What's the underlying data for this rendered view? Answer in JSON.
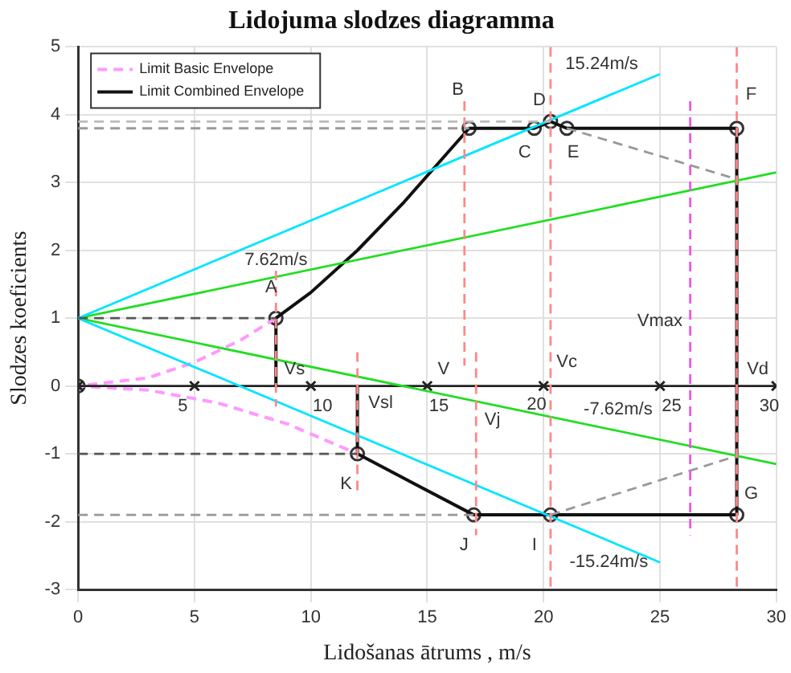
{
  "chart_data": {
    "type": "line",
    "title": "Lidojuma slodzes diagramma",
    "xlabel": "Lidošanas ātrums , m/s",
    "ylabel": "Slodzes koeficients",
    "xlim": [
      0,
      30
    ],
    "ylim": [
      -3,
      5
    ],
    "xticks": [
      0,
      5,
      10,
      15,
      20,
      25,
      30
    ],
    "yticks": [
      -3,
      -2,
      -1,
      0,
      1,
      2,
      3,
      4,
      5
    ],
    "grid": true,
    "legend": "top left",
    "series": [
      {
        "type": "line",
        "color": "#bbbbbb",
        "line_style": "dashed",
        "marker": "none",
        "x": [
          0,
          20.3
        ],
        "values": [
          3.9,
          3.9
        ]
      },
      {
        "type": "line",
        "color": "#999999",
        "line_style": "dashed",
        "marker": "none",
        "x": [
          0,
          16.8
        ],
        "values": [
          3.8,
          3.8
        ]
      },
      {
        "type": "line",
        "color": "#555555",
        "line_style": "dashed",
        "marker": "none",
        "x": [
          0,
          8.5
        ],
        "values": [
          1,
          1
        ]
      },
      {
        "type": "line",
        "color": "#555555",
        "line_style": "dashed",
        "marker": "none",
        "x": [
          0,
          12
        ],
        "values": [
          -1,
          -1
        ]
      },
      {
        "type": "line",
        "color": "#999999",
        "line_style": "dashed",
        "marker": "none",
        "x": [
          0,
          17
        ],
        "values": [
          -1.9,
          -1.9
        ]
      },
      {
        "type": "line",
        "color": "#ff8888",
        "line_style": "dashed",
        "marker": "none",
        "x": [
          8.5,
          8.5
        ],
        "values": [
          1.7,
          -0.3
        ]
      },
      {
        "type": "line",
        "color": "#ff8888",
        "line_style": "dashed",
        "marker": "none",
        "x": [
          12,
          12
        ],
        "values": [
          0.5,
          -1.6
        ]
      },
      {
        "type": "line",
        "color": "#ff8888",
        "line_style": "dashed",
        "marker": "none",
        "x": [
          16.6,
          16.6
        ],
        "values": [
          4.2,
          0.3
        ]
      },
      {
        "type": "line",
        "color": "#ff8888",
        "line_style": "dashed",
        "marker": "none",
        "x": [
          17.1,
          17.1
        ],
        "values": [
          0.5,
          -2.2
        ]
      },
      {
        "type": "line",
        "color": "#ff8888",
        "line_style": "dashed",
        "marker": "none",
        "x": [
          20.3,
          20.3
        ],
        "values": [
          5,
          -3
        ]
      },
      {
        "type": "line",
        "color": "#ff8888",
        "line_style": "dashed",
        "marker": "none",
        "x": [
          28.3,
          28.3
        ],
        "values": [
          5,
          -3
        ]
      },
      {
        "type": "line",
        "color": "#ee55ee",
        "line_style": "dashed",
        "marker": "none",
        "x": [
          26.3,
          26.3
        ],
        "values": [
          4.2,
          -2.2
        ]
      },
      {
        "type": "line",
        "color": "#00e5ff",
        "line_style": "solid",
        "marker": "none",
        "x": [
          0,
          25
        ],
        "values": [
          1,
          4.6
        ]
      },
      {
        "type": "line",
        "color": "#00e5ff",
        "line_style": "solid",
        "marker": "none",
        "x": [
          0,
          25
        ],
        "values": [
          1,
          -2.6
        ]
      },
      {
        "type": "line",
        "color": "#22dd22",
        "line_style": "solid",
        "marker": "none",
        "x": [
          0,
          30
        ],
        "values": [
          1,
          3.15
        ]
      },
      {
        "type": "line",
        "color": "#22dd22",
        "line_style": "solid",
        "marker": "none",
        "x": [
          0,
          30
        ],
        "values": [
          1,
          -1.15
        ]
      },
      {
        "type": "line",
        "color": "#999999",
        "line_style": "dashed",
        "marker": "none",
        "x": [
          21,
          28.3
        ],
        "values": [
          3.8,
          3.05
        ]
      },
      {
        "type": "line",
        "color": "#999999",
        "line_style": "dashed",
        "marker": "none",
        "x": [
          20.3,
          28.3
        ],
        "values": [
          -1.9,
          -1.03
        ]
      },
      {
        "type": "line",
        "color": "#222222",
        "line_style": "solid",
        "marker": "cross",
        "x": [
          0,
          5,
          10,
          15,
          20,
          25,
          30
        ],
        "values": [
          0,
          0,
          0,
          0,
          0,
          0,
          0
        ]
      },
      {
        "type": "line",
        "name": "Limit Basic Envelope",
        "color": "#ff99ff",
        "line_style": "dashed",
        "marker": "none",
        "x": [
          8.5,
          7,
          5,
          3,
          0,
          3,
          6,
          9,
          12
        ],
        "values": [
          1,
          0.68,
          0.35,
          0.12,
          0,
          -0.06,
          -0.25,
          -0.56,
          -1
        ]
      },
      {
        "type": "line",
        "name": "Limit Combined Envelope",
        "color": "#111111",
        "line_style": "solid",
        "marker": "none",
        "x": [
          8.5,
          8.5,
          10,
          12,
          14,
          16.8,
          19.6,
          20.3,
          21,
          28.3,
          28.3,
          20.3,
          17,
          12,
          12
        ],
        "values": [
          0,
          1,
          1.38,
          2,
          2.71,
          3.8,
          3.8,
          3.9,
          3.8,
          3.8,
          -1.9,
          -1.9,
          -1.9,
          -1,
          0
        ]
      },
      {
        "type": "scatter",
        "color": "#333333",
        "marker": "circle",
        "x": [
          0,
          8.5,
          16.8,
          19.6,
          20.3,
          21,
          28.3,
          28.3,
          20.3,
          17,
          12
        ],
        "values": [
          0,
          1,
          3.8,
          3.8,
          3.9,
          3.8,
          3.8,
          -1.9,
          -1.9,
          -1.9,
          -1
        ]
      }
    ],
    "annotations": [
      {
        "text": "A",
        "x": 8.5,
        "y": 1
      },
      {
        "text": "B",
        "x": 16.8,
        "y": 3.8
      },
      {
        "text": "C",
        "x": 19.6,
        "y": 3.8
      },
      {
        "text": "D",
        "x": 20.3,
        "y": 3.9
      },
      {
        "text": "E",
        "x": 21,
        "y": 3.8
      },
      {
        "text": "F",
        "x": 28.3,
        "y": 3.8
      },
      {
        "text": "G",
        "x": 28.3,
        "y": -1.9
      },
      {
        "text": "I",
        "x": 20.3,
        "y": -1.9
      },
      {
        "text": "J",
        "x": 17,
        "y": -1.9
      },
      {
        "text": "K",
        "x": 12,
        "y": -1
      },
      "Vs",
      "Vsl",
      "V",
      "Vj",
      "Vc",
      "Vd",
      "Vmax",
      "7.62m/s",
      "15.24m/s",
      "-7.62m/s",
      "-15.24m/s",
      "5",
      "10",
      "15",
      "20",
      "25",
      "30"
    ]
  }
}
